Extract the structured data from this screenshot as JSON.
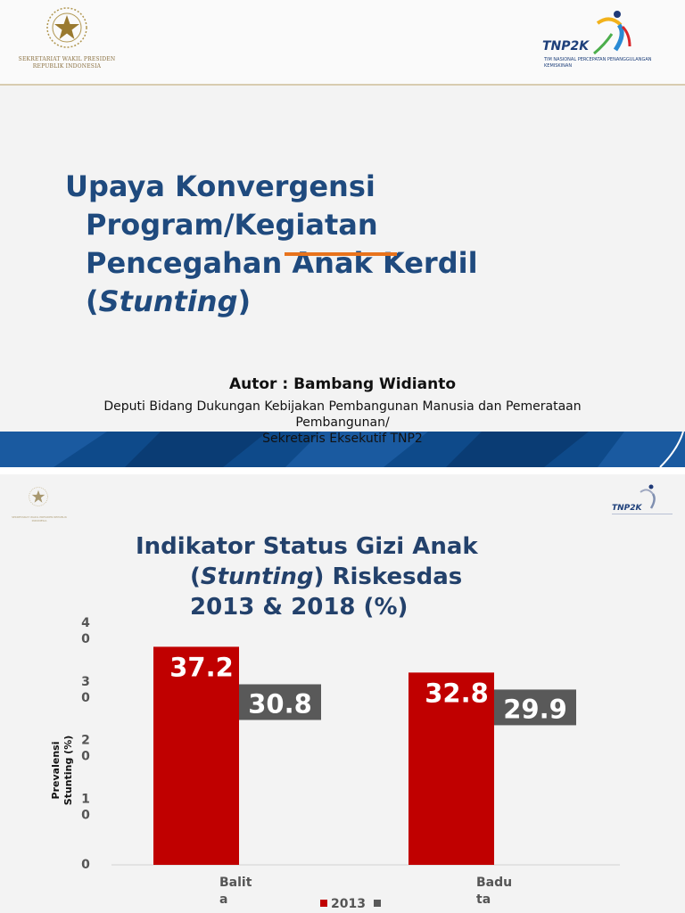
{
  "slide1": {
    "org_text": "SEKRETARIAT WAKIL PRESIDEN REPUBLIK INDONESIA",
    "logo_name": "TNP2K",
    "logo_sub": "TIM NASIONAL PERCEPATAN PENANGGULANGAN KEMISKINAN",
    "title_line1": "Upaya Konvergensi",
    "title_line2": "Program/Kegiatan",
    "title_line3": "Pencegahan Anak Kerdil",
    "title_line4_open": "(",
    "title_line4_em": "Stunting",
    "title_line4_close": ")",
    "author": "Autor : Bambang Widianto",
    "affil_line1": "Deputi Bidang Dukungan Kebijakan Pembangunan Manusia dan Pemerataan",
    "affil_line2": "Pembangunan/",
    "affil_line3": "Sekretaris Eksekutif TNP2",
    "colors": {
      "title": "#1f4a7e",
      "accent_underline": "#e8731c",
      "band": "#0e4a8a"
    }
  },
  "slide2": {
    "org_text": "SEKRETARIAT WAKIL PRESIDEN REPUBLIK INDONESIA",
    "logo_name": "TNP2K",
    "title_line1": "Indikator Status Gizi Anak",
    "title_line2_open": "(",
    "title_line2_em": "Stunting",
    "title_line2_rest": ")  Riskesdas",
    "title_line3": "2013 & 2018 (%)"
  },
  "chart_data": {
    "type": "bar",
    "categories": [
      "Balita",
      "Baduta"
    ],
    "category_labels": [
      [
        "Balit",
        "a"
      ],
      [
        "Badu",
        "ta"
      ]
    ],
    "series": [
      {
        "name": "2013",
        "values": [
          37.2,
          32.8
        ],
        "labels": [
          "37.2",
          "32.8"
        ],
        "color": "#c00000"
      },
      {
        "values": [
          30.8,
          29.9
        ],
        "labels": [
          "30.8",
          "29.9"
        ],
        "color": "#595959"
      }
    ],
    "ylabel_line1": "Prevalensi",
    "ylabel_line2": "Stunting (%)",
    "ylim": [
      0,
      40
    ],
    "yticks": [
      {
        "value": 40,
        "lines": [
          "4",
          "0"
        ]
      },
      {
        "value": 30,
        "lines": [
          "3",
          "0"
        ]
      },
      {
        "value": 20,
        "lines": [
          "2",
          "0"
        ]
      },
      {
        "value": 10,
        "lines": [
          "1",
          "0"
        ]
      },
      {
        "value": 0,
        "lines": [
          "0"
        ]
      }
    ],
    "legend": "bottom",
    "grid": false
  }
}
